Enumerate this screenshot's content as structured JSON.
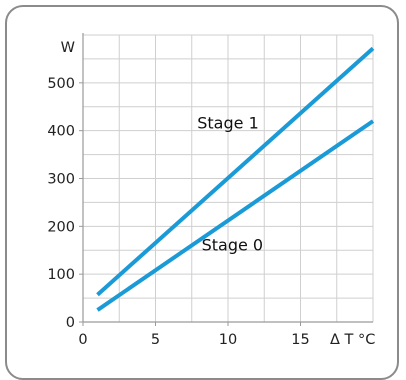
{
  "chart_data": {
    "type": "line",
    "title": "",
    "xlabel": "",
    "ylabel": "",
    "y_unit_label": "W",
    "x_unit_label": "Δ T °C",
    "xlim": [
      0,
      20
    ],
    "ylim": [
      0,
      600
    ],
    "x_ticks": [
      "0",
      "5",
      "10",
      "15"
    ],
    "y_ticks": [
      "0",
      "100",
      "200",
      "300",
      "400",
      "500"
    ],
    "grid": true,
    "line_color": "#1a9ad6",
    "series": [
      {
        "name": "Stage 1",
        "x": [
          1,
          20
        ],
        "y": [
          57,
          572
        ]
      },
      {
        "name": "Stage 0",
        "x": [
          1,
          20
        ],
        "y": [
          25,
          420
        ]
      }
    ],
    "annotations": [
      {
        "text": "Stage 1",
        "x": 10,
        "y": 405
      },
      {
        "text": "Stage 0",
        "x": 10.3,
        "y": 150
      }
    ]
  }
}
